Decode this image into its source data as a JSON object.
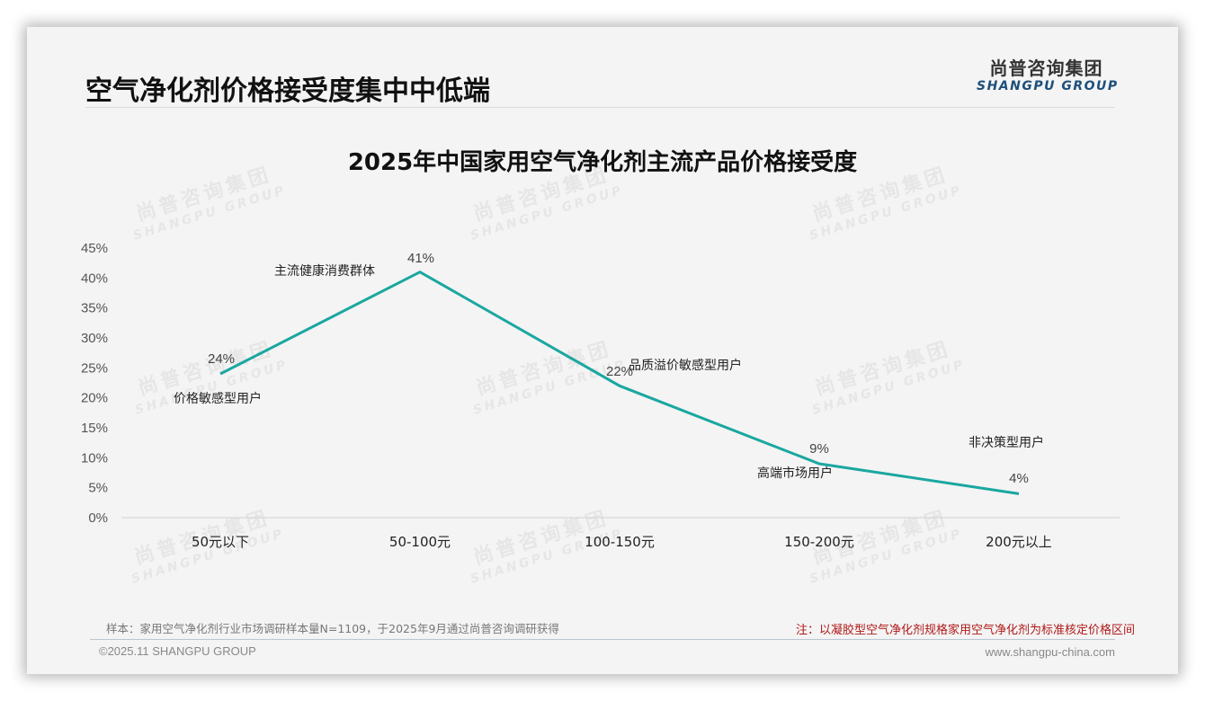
{
  "header": {
    "page_title": "空气净化剂价格接受度集中中低端",
    "logo_cn": "尚普咨询集团",
    "logo_en": "SHANGPU GROUP"
  },
  "watermark": {
    "cn": "尚普咨询集团",
    "en": "SHANGPU GROUP"
  },
  "chart_data": {
    "type": "line",
    "title": "2025年中国家用空气净化剂主流产品价格接受度",
    "xlabel": "",
    "ylabel": "",
    "categories": [
      "50元以下",
      "50-100元",
      "100-150元",
      "150-200元",
      "200元以上"
    ],
    "series": [
      {
        "name": "价格接受度",
        "values": [
          24,
          41,
          22,
          9,
          4
        ],
        "color": "#1aa7a0"
      }
    ],
    "value_labels": [
      "24%",
      "41%",
      "22%",
      "9%",
      "4%"
    ],
    "annotations": [
      "价格敏感型用户",
      "主流健康消费群体",
      "品质溢价敏感型用户",
      "高端市场用户",
      "非决策型用户"
    ],
    "y_ticks": [
      "0%",
      "5%",
      "10%",
      "15%",
      "20%",
      "25%",
      "30%",
      "35%",
      "40%",
      "45%"
    ],
    "ylim": [
      0,
      45
    ],
    "grid": false,
    "legend": "none"
  },
  "footer": {
    "sample_note": "样本：家用空气净化剂行业市场调研样本量N=1109，于2025年9月通过尚普咨询调研获得",
    "red_note": "注：以凝胶型空气净化剂规格家用空气净化剂为标准核定价格区间",
    "copyright": "©2025.11 SHANGPU GROUP",
    "website": "www.shangpu-china.com"
  }
}
